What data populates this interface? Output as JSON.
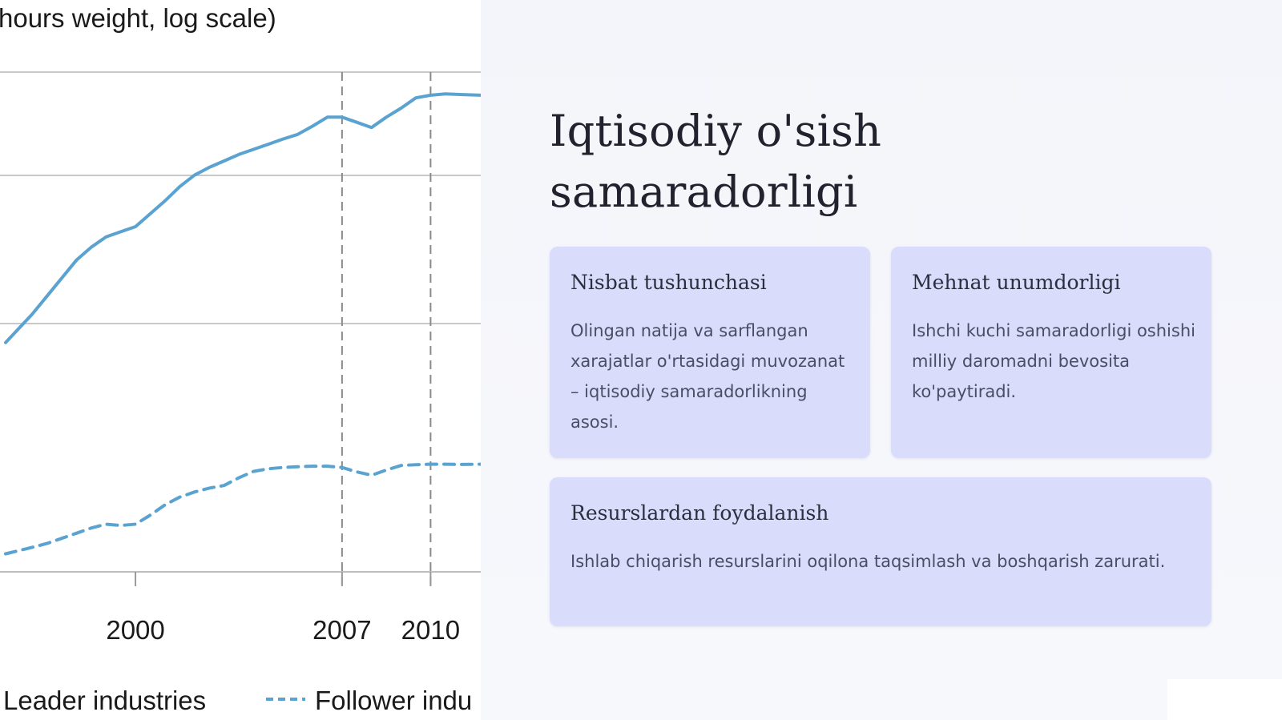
{
  "chart_data": {
    "type": "line",
    "ylabel": "hours weight, log scale)",
    "x_tick_labels": [
      "2000",
      "2007",
      "2010"
    ],
    "x_ticks": [
      2000,
      2007,
      2010
    ],
    "xlim": [
      1995.6,
      2011.7
    ],
    "vertical_markers": [
      2007,
      2010
    ],
    "y_scale": "log",
    "grid": "horizontal",
    "legend_position": "bottom",
    "series": [
      {
        "name": "Leader industries",
        "style": "solid",
        "color": "#5aa3d0",
        "x": [
          1995.6,
          1996.5,
          1997.0,
          1997.5,
          1998.0,
          1998.5,
          1999.0,
          1999.5,
          2000.0,
          2000.5,
          2001.0,
          2001.5,
          2002.0,
          2002.5,
          2003.0,
          2003.5,
          2004.0,
          2004.5,
          2005.0,
          2005.5,
          2006.0,
          2006.5,
          2007.0,
          2007.5,
          2008.0,
          2008.5,
          2009.0,
          2009.5,
          2010.0,
          2010.5,
          2011.0,
          2011.7
        ],
        "y": [
          0.25,
          0.36,
          0.43,
          0.5,
          0.57,
          0.62,
          0.66,
          0.68,
          0.7,
          0.75,
          0.8,
          0.855,
          0.9,
          0.93,
          0.955,
          0.98,
          1.0,
          1.02,
          1.04,
          1.058,
          1.09,
          1.125,
          1.125,
          1.105,
          1.085,
          1.125,
          1.16,
          1.2,
          1.21,
          1.215,
          1.213,
          1.21
        ]
      },
      {
        "name": "Follower industries",
        "legend_label": "Follower indu",
        "style": "dashed",
        "color": "#5aa3d0",
        "x": [
          1995.6,
          1996.5,
          1997.0,
          1997.5,
          1998.0,
          1998.5,
          1999.0,
          1999.5,
          2000.0,
          2000.5,
          2001.0,
          2001.5,
          2002.0,
          2002.5,
          2003.0,
          2003.5,
          2004.0,
          2004.5,
          2005.0,
          2005.5,
          2006.0,
          2006.5,
          2007.0,
          2007.5,
          2008.0,
          2008.5,
          2009.0,
          2009.5,
          2010.0,
          2010.5,
          2011.0,
          2011.7
        ],
        "y": [
          -0.57,
          -0.545,
          -0.53,
          -0.51,
          -0.49,
          -0.47,
          -0.455,
          -0.46,
          -0.455,
          -0.42,
          -0.38,
          -0.35,
          -0.33,
          -0.315,
          -0.305,
          -0.275,
          -0.25,
          -0.24,
          -0.235,
          -0.232,
          -0.23,
          -0.23,
          -0.235,
          -0.252,
          -0.265,
          -0.245,
          -0.227,
          -0.224,
          -0.222,
          -0.222,
          -0.223,
          -0.222
        ]
      }
    ]
  },
  "slide": {
    "title_line1": "Iqtisodiy o'sish",
    "title_line2": "samaradorligi",
    "cards": [
      {
        "title": "Nisbat tushunchasi",
        "text": "Olingan natija va sarflangan xarajatlar o'rtasidagi muvozanat – iqtisodiy samaradorlikning asosi."
      },
      {
        "title": "Mehnat unumdorligi",
        "text": "Ishchi kuchi samaradorligi oshishi milliy daromadni bevosita ko'paytiradi."
      },
      {
        "title": "Resurslardan foydalanish",
        "text": "Ishlab chiqarish resurslarini oqilona taqsimlash va boshqarish zarurati."
      }
    ]
  }
}
